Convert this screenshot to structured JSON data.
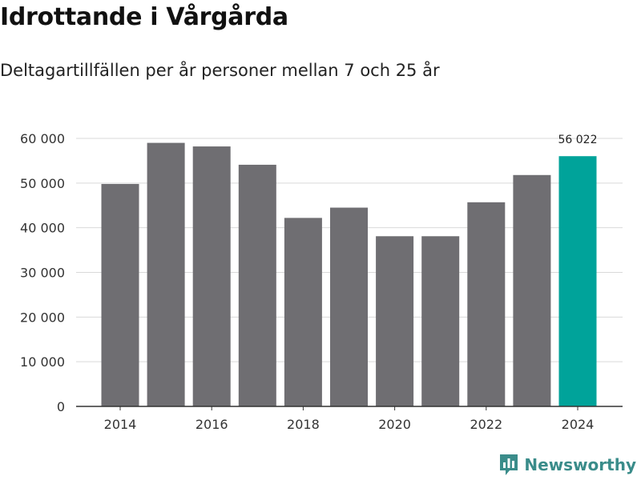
{
  "header": {
    "title": "Idrottande i Vårgårda",
    "subtitle": "Deltagartillfällen per år personer mellan 7 och 25 år"
  },
  "brand": {
    "name": "Newsworthy",
    "color": "#3a8c8a"
  },
  "colors": {
    "bar": "#6f6e72",
    "highlight": "#00a39a",
    "grid": "#d9d9d9",
    "axis": "#333333"
  },
  "chart_data": {
    "type": "bar",
    "title": "Idrottande i Vårgårda",
    "subtitle": "Deltagartillfällen per år personer mellan 7 och 25 år",
    "xlabel": "",
    "ylabel": "",
    "categories": [
      "2014",
      "2015",
      "2016",
      "2017",
      "2018",
      "2019",
      "2020",
      "2021",
      "2022",
      "2023",
      "2024"
    ],
    "values": [
      49800,
      59000,
      58200,
      54100,
      42200,
      44500,
      38100,
      38100,
      45700,
      51800,
      56022
    ],
    "highlight_index": 10,
    "data_labels": [
      {
        "index": 10,
        "text": "56 022"
      }
    ],
    "ylim": [
      0,
      60000
    ],
    "yticks": [
      0,
      10000,
      20000,
      30000,
      40000,
      50000,
      60000
    ],
    "ytick_labels": [
      "0",
      "10 000",
      "20 000",
      "30 000",
      "40 000",
      "50 000",
      "60 000"
    ],
    "xtick_labels": [
      "2014",
      "2016",
      "2018",
      "2020",
      "2022",
      "2024"
    ],
    "grid": true
  }
}
